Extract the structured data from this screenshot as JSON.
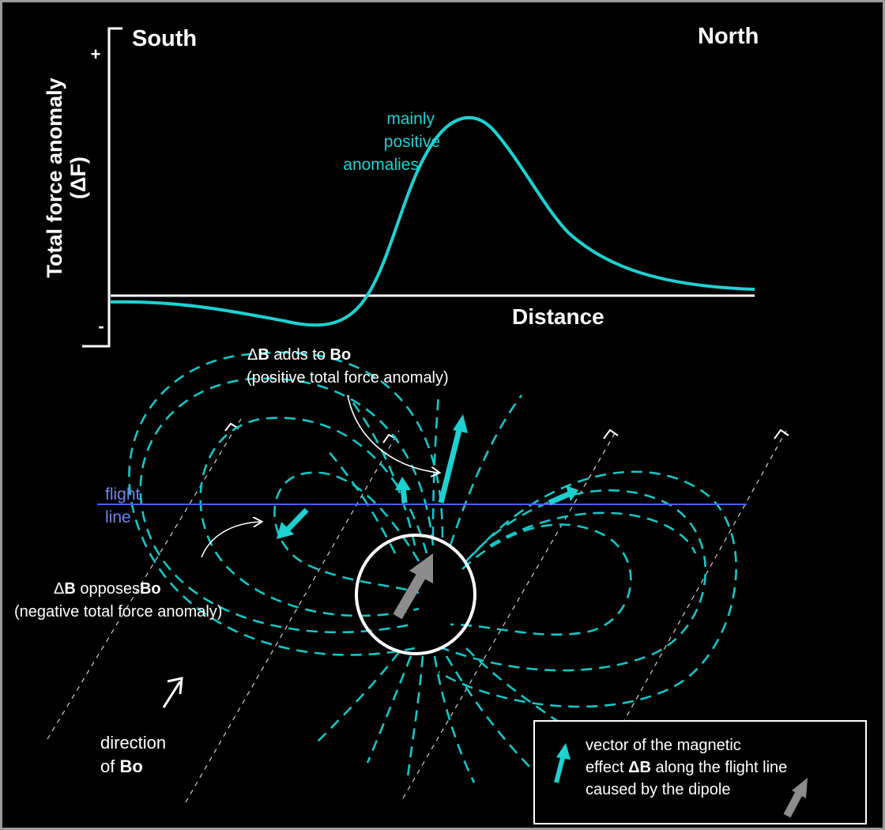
{
  "labels": {
    "south": "South",
    "north": "North",
    "y_axis_line1": "Total force anomaly",
    "y_axis_line2": "(ΔF)",
    "plus": "+",
    "minus": "-",
    "distance": "Distance",
    "mainly": "mainly",
    "positive": "positive",
    "anomalies": "anomalies",
    "adds_prefix": "Δ",
    "adds_B": "B",
    "adds_text": " adds to ",
    "adds_Bo": "Bo",
    "adds_sub": "(positive total force anomaly)",
    "opp_prefix": "Δ",
    "opp_B": "B",
    "opp_text": " opposes",
    "opp_Bo": "Bo",
    "opp_sub": "(negative total force anomaly)",
    "flight": "flight",
    "line": "line",
    "direction": "direction",
    "of": "of ",
    "dir_Bo": "Bo",
    "legend_line1": "vector of the magnetic",
    "legend_line2a": "effect ",
    "legend_line2b": "ΔB",
    "legend_line2c": " along the flight line",
    "legend_line3": "caused by the dipole"
  },
  "colors": {
    "background": "#000000",
    "curve": "#1ed1d1",
    "field_lines": "#17c6c6",
    "flight_line": "#4c5ff0",
    "dipole_arrow": "#8c8c8c",
    "text": "#ffffff"
  }
}
